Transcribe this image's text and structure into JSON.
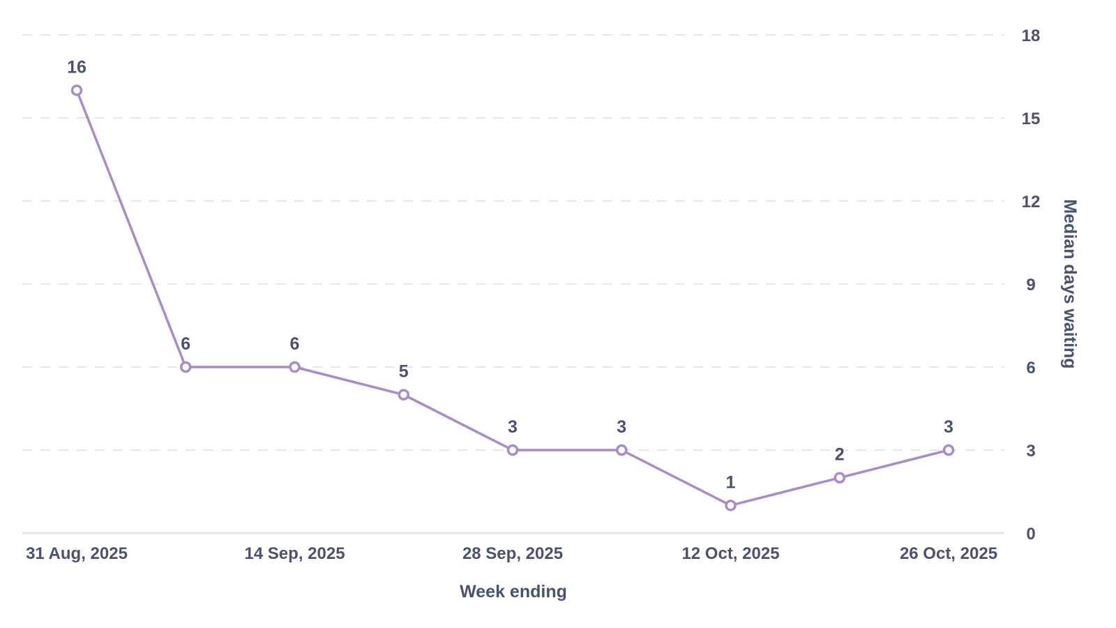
{
  "chart_data": {
    "type": "line",
    "title": "",
    "xlabel": "Week ending",
    "ylabel": "Median days waiting",
    "ylim": [
      0,
      18
    ],
    "yticks": [
      0,
      3,
      6,
      9,
      12,
      15,
      18
    ],
    "grid": true,
    "x": [
      "31 Aug, 2025",
      "7 Sep, 2025",
      "14 Sep, 2025",
      "21 Sep, 2025",
      "28 Sep, 2025",
      "5 Oct, 2025",
      "12 Oct, 2025",
      "19 Oct, 2025",
      "26 Oct, 2025"
    ],
    "xtick_labels": [
      "31 Aug, 2025",
      "14 Sep, 2025",
      "28 Sep, 2025",
      "12 Oct, 2025",
      "26 Oct, 2025"
    ],
    "series": [
      {
        "name": "Median days waiting",
        "values": [
          16,
          6,
          6,
          5,
          3,
          3,
          1,
          2,
          3
        ],
        "color": "#a98bc8"
      }
    ],
    "colors": {
      "text": "#4a5270",
      "grid": "#e6e6e6",
      "line": "#a98bc8"
    }
  }
}
